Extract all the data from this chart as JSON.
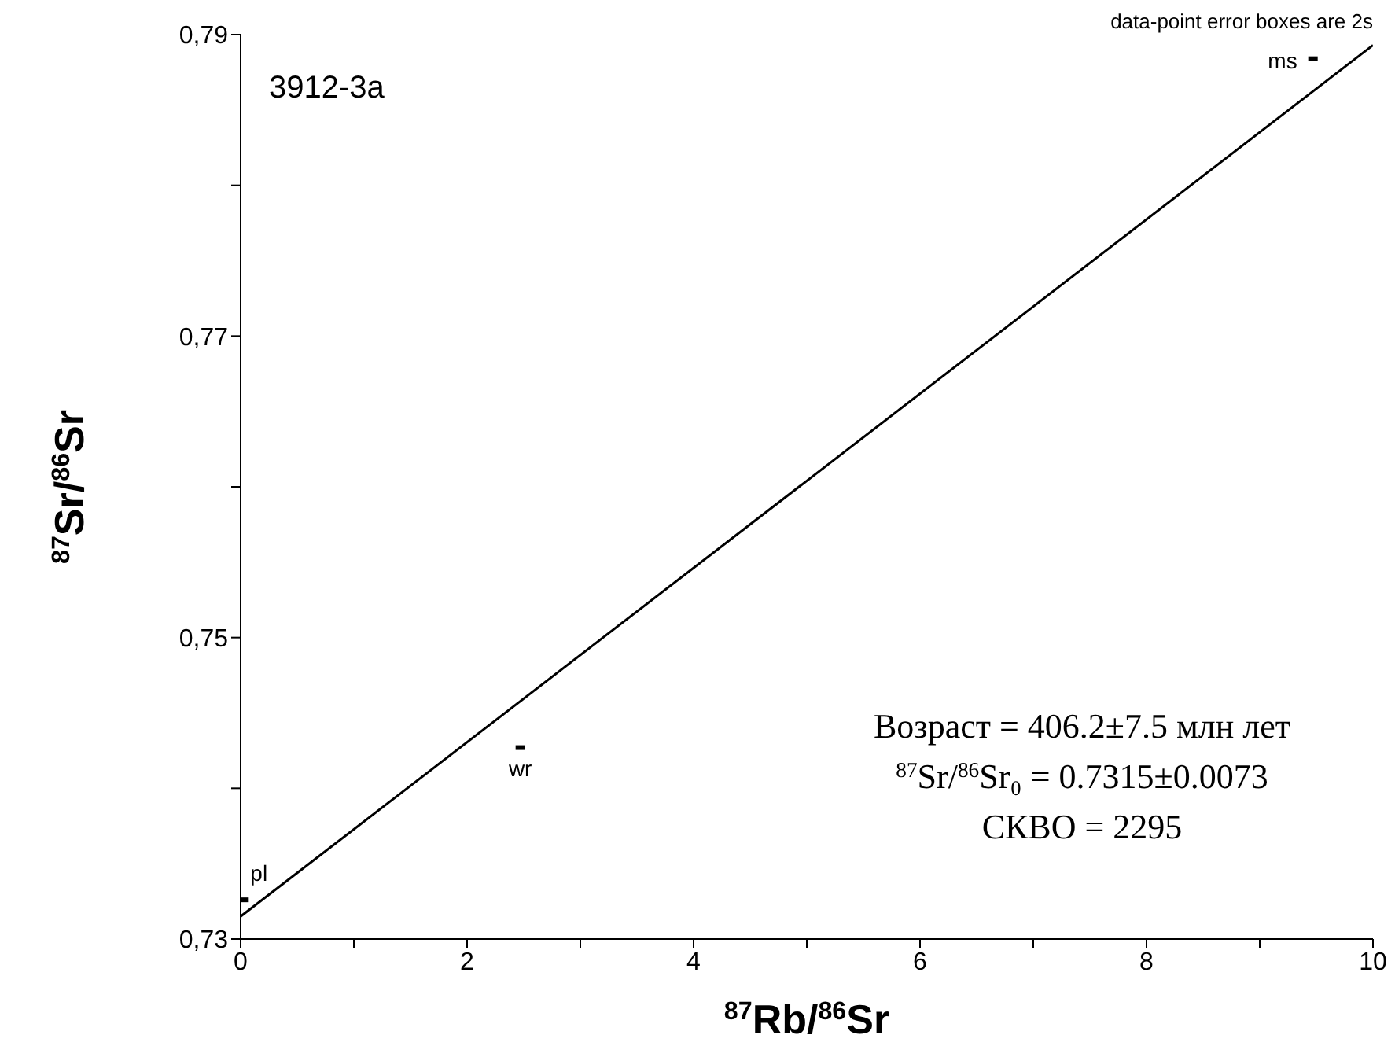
{
  "chart_data": {
    "type": "scatter",
    "title": "3912-3а",
    "xlabel": "$^{87}$Rb/$^{86}$Sr",
    "ylabel": "$^{87}$Sr/$^{86}$Sr",
    "xlim": [
      0,
      10
    ],
    "ylim": [
      0.73,
      0.79
    ],
    "xticks": [
      0,
      {
        "value": 1,
        "label": null
      },
      2,
      {
        "value": 3,
        "label": null
      },
      4,
      {
        "value": 5,
        "label": null
      },
      6,
      {
        "value": 7,
        "label": null
      },
      8,
      {
        "value": 9,
        "label": null
      },
      10
    ],
    "yticks": [
      {
        "value": 0.73,
        "label": "0,73"
      },
      {
        "value": 0.74,
        "label": null
      },
      {
        "value": 0.75,
        "label": "0,75"
      },
      {
        "value": 0.76,
        "label": null
      },
      {
        "value": 0.77,
        "label": "0,77"
      },
      {
        "value": 0.78,
        "label": null
      },
      {
        "value": 0.79,
        "label": "0,79"
      }
    ],
    "marker": "square",
    "series": [
      {
        "type": "line",
        "x": [
          0,
          10
        ],
        "values": [
          0.7315,
          0.7893
        ],
        "color": "#000000",
        "marker": "none",
        "line_style": "solid"
      },
      {
        "x": [
          0.03,
          2.47,
          9.47
        ],
        "values": [
          0.7326,
          0.7427,
          0.7884
        ],
        "color": "#000000"
      }
    ],
    "annotations": [
      "data-point error boxes are 2s",
      "Возраст = 406.2±7.5 млн лет",
      "$^{87}$Sr/$^{86}$Sr₀ = 0.7315±0.0073",
      "СКВО = 2295",
      {
        "text": "pl",
        "x": 0.03,
        "y": 0.7326
      },
      {
        "text": "wr",
        "x": 2.47,
        "y": 0.7427
      },
      {
        "text": "ms",
        "x": 9.47,
        "y": 0.7884
      }
    ]
  }
}
